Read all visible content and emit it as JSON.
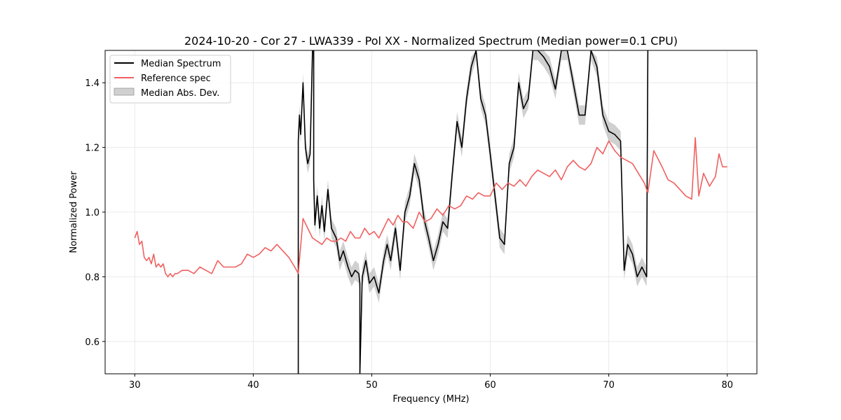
{
  "chart_data": {
    "type": "line",
    "title": "2024-10-20 - Cor 27 - LWA339 - Pol XX - Normalized Spectrum (Median power=0.1 CPU)",
    "xlabel": "Frequency (MHz)",
    "ylabel": "Normalized Power",
    "xlim": [
      27.5,
      82.5
    ],
    "ylim": [
      0.5,
      1.5
    ],
    "xticks": [
      30,
      40,
      50,
      60,
      70,
      80
    ],
    "yticks": [
      0.6,
      0.8,
      1.0,
      1.2,
      1.4
    ],
    "xtick_labels": [
      "30",
      "40",
      "50",
      "60",
      "70",
      "80"
    ],
    "ytick_labels": [
      "0.6",
      "0.8",
      "1.0",
      "1.2",
      "1.4"
    ],
    "grid": true,
    "legend_position": "top-left",
    "legend": [
      "Median Spectrum",
      "Reference spec",
      "Median Abs. Dev."
    ],
    "colors": {
      "median": "#000000",
      "reference": "#f06060",
      "mad": "#b0b0b0"
    },
    "series": [
      {
        "name": "Reference spec",
        "x": [
          30.0,
          30.2,
          30.4,
          30.6,
          30.8,
          31.0,
          31.2,
          31.4,
          31.6,
          31.8,
          32.0,
          32.2,
          32.4,
          32.6,
          32.8,
          33.0,
          33.2,
          33.4,
          33.6,
          34.0,
          34.5,
          35.0,
          35.5,
          36.0,
          36.5,
          37.0,
          37.5,
          38.0,
          38.5,
          39.0,
          39.5,
          40.0,
          40.5,
          41.0,
          41.5,
          42.0,
          42.5,
          43.0,
          43.5,
          43.8,
          44.2,
          44.6,
          45.0,
          45.4,
          45.8,
          46.2,
          46.6,
          47.0,
          47.4,
          47.8,
          48.2,
          48.6,
          49.0,
          49.4,
          49.8,
          50.2,
          50.6,
          51.0,
          51.4,
          51.8,
          52.2,
          52.6,
          53.0,
          53.5,
          54.0,
          54.5,
          55.0,
          55.5,
          56.0,
          56.5,
          57.0,
          57.5,
          58.0,
          58.5,
          59.0,
          59.5,
          60.0,
          60.5,
          61.0,
          61.5,
          62.0,
          62.5,
          63.0,
          63.5,
          64.0,
          64.5,
          65.0,
          65.5,
          66.0,
          66.5,
          67.0,
          67.5,
          68.0,
          68.5,
          69.0,
          69.5,
          70.0,
          70.5,
          71.0,
          71.5,
          72.0,
          72.5,
          73.0,
          73.3,
          73.8,
          74.5,
          75.0,
          75.5,
          76.0,
          76.5,
          77.0,
          77.3,
          77.6,
          78.0,
          78.5,
          79.0,
          79.3,
          79.6,
          80.0
        ],
        "values": [
          0.92,
          0.94,
          0.9,
          0.91,
          0.86,
          0.85,
          0.86,
          0.84,
          0.87,
          0.83,
          0.84,
          0.83,
          0.84,
          0.81,
          0.8,
          0.81,
          0.8,
          0.81,
          0.81,
          0.82,
          0.82,
          0.81,
          0.83,
          0.82,
          0.81,
          0.85,
          0.83,
          0.83,
          0.83,
          0.84,
          0.87,
          0.86,
          0.87,
          0.89,
          0.88,
          0.9,
          0.88,
          0.86,
          0.83,
          0.81,
          0.98,
          0.95,
          0.92,
          0.91,
          0.9,
          0.92,
          0.91,
          0.91,
          0.92,
          0.91,
          0.94,
          0.92,
          0.92,
          0.95,
          0.93,
          0.94,
          0.92,
          0.95,
          0.98,
          0.96,
          0.99,
          0.97,
          0.97,
          0.95,
          1.0,
          0.97,
          0.98,
          1.01,
          0.99,
          1.02,
          1.01,
          1.02,
          1.05,
          1.04,
          1.06,
          1.05,
          1.05,
          1.09,
          1.07,
          1.09,
          1.08,
          1.1,
          1.08,
          1.11,
          1.13,
          1.12,
          1.11,
          1.13,
          1.1,
          1.14,
          1.16,
          1.14,
          1.13,
          1.15,
          1.2,
          1.18,
          1.22,
          1.19,
          1.17,
          1.16,
          1.15,
          1.12,
          1.09,
          1.06,
          1.19,
          1.14,
          1.1,
          1.09,
          1.07,
          1.05,
          1.04,
          1.23,
          1.05,
          1.12,
          1.08,
          1.11,
          1.18,
          1.14,
          1.14
        ]
      },
      {
        "name": "Median Spectrum",
        "x": [
          43.8,
          43.8,
          43.9,
          44.0,
          44.2,
          44.4,
          44.6,
          44.8,
          45.0,
          45.1,
          45.1,
          45.2,
          45.4,
          45.6,
          45.8,
          46.0,
          46.3,
          46.6,
          47.0,
          47.3,
          47.6,
          48.0,
          48.3,
          48.6,
          48.9,
          49.0,
          49.0,
          49.2,
          49.5,
          49.8,
          50.2,
          50.6,
          51.0,
          51.3,
          51.6,
          52.0,
          52.4,
          52.8,
          53.2,
          53.6,
          54.0,
          54.4,
          54.8,
          55.2,
          55.6,
          56.0,
          56.4,
          56.8,
          57.2,
          57.6,
          58.0,
          58.4,
          58.8,
          59.2,
          59.6,
          60.0,
          60.4,
          60.8,
          61.2,
          61.6,
          62.0,
          62.4,
          62.8,
          63.2,
          63.6,
          64.0,
          64.5,
          65.0,
          65.5,
          66.0,
          66.5,
          67.0,
          67.5,
          68.0,
          68.5,
          69.0,
          69.5,
          70.0,
          70.5,
          71.0,
          71.3,
          71.6,
          72.0,
          72.4,
          72.8,
          73.2,
          73.3,
          73.3
        ],
        "values": [
          0.5,
          1.22,
          1.3,
          1.24,
          1.4,
          1.2,
          1.15,
          1.18,
          1.5,
          1.5,
          1.1,
          0.96,
          1.05,
          0.95,
          1.02,
          0.94,
          1.07,
          0.95,
          0.92,
          0.85,
          0.88,
          0.83,
          0.8,
          0.82,
          0.81,
          0.78,
          0.5,
          0.8,
          0.85,
          0.78,
          0.8,
          0.75,
          0.85,
          0.9,
          0.85,
          0.95,
          0.82,
          1.0,
          1.05,
          1.15,
          1.1,
          0.98,
          0.92,
          0.85,
          0.9,
          0.97,
          0.95,
          1.12,
          1.28,
          1.2,
          1.35,
          1.45,
          1.5,
          1.35,
          1.3,
          1.18,
          1.05,
          0.92,
          0.9,
          1.15,
          1.2,
          1.4,
          1.32,
          1.35,
          1.5,
          1.5,
          1.48,
          1.45,
          1.38,
          1.5,
          1.5,
          1.4,
          1.3,
          1.3,
          1.5,
          1.45,
          1.3,
          1.25,
          1.24,
          1.22,
          0.82,
          0.9,
          0.87,
          0.8,
          0.83,
          0.8,
          1.5,
          1.5
        ]
      }
    ]
  }
}
